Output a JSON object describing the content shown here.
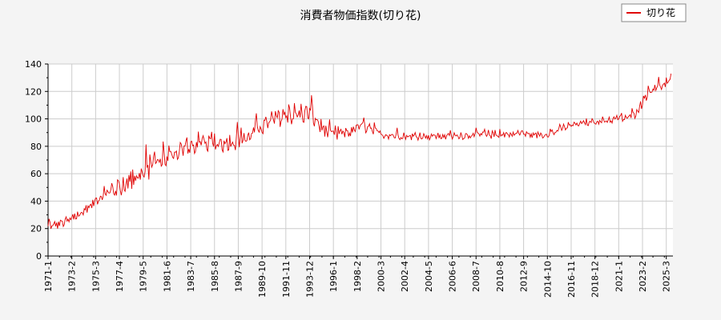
{
  "chart_data": {
    "type": "line",
    "title": "消費者物価指数(切り花)",
    "xlabel": "",
    "ylabel": "",
    "ylim": [
      0,
      140
    ],
    "yticks": [
      0,
      20,
      40,
      60,
      80,
      100,
      120,
      140
    ],
    "grid": true,
    "legend_position": "top-right",
    "x_tick_labels": [
      "1971-1",
      "1973-2",
      "1975-3",
      "1977-4",
      "1979-5",
      "1981-6",
      "1983-7",
      "1985-8",
      "1987-9",
      "1989-10",
      "1991-11",
      "1993-12",
      "1996-1",
      "1998-2",
      "2000-3",
      "2002-4",
      "2004-5",
      "2006-6",
      "2008-7",
      "2010-8",
      "2012-9",
      "2014-10",
      "2016-11",
      "2018-12",
      "2021-1",
      "2023-2",
      "2025-3"
    ],
    "colors": {
      "series": "#e00000",
      "grid": "#cccccc",
      "axis": "#000000",
      "background": "#f4f4f4",
      "plot_background": "#ffffff"
    },
    "series": [
      {
        "name": "切り花",
        "anchors_x": [
          "1971-01",
          "1972-01",
          "1973-01",
          "1974-01",
          "1975-01",
          "1975-09",
          "1976-06",
          "1977-06",
          "1978-06",
          "1979-06",
          "1980-06",
          "1981-06",
          "1982-06",
          "1983-06",
          "1984-06",
          "1985-06",
          "1986-06",
          "1987-06",
          "1988-06",
          "1989-06",
          "1990-06",
          "1991-06",
          "1992-06",
          "1993-06",
          "1994-01",
          "1994-06",
          "1995-06",
          "1996-06",
          "1997-06",
          "1998-06",
          "1999-06",
          "2000-06",
          "2002-06",
          "2004-06",
          "2006-06",
          "2008-06",
          "2010-06",
          "2012-06",
          "2013-06",
          "2014-06",
          "2015-06",
          "2016-06",
          "2017-06",
          "2018-06",
          "2019-06",
          "2020-06",
          "2021-06",
          "2022-01",
          "2022-06",
          "2023-01",
          "2023-06",
          "2024-01",
          "2024-06",
          "2025-01",
          "2025-06",
          "2025-08"
        ],
        "anchors_y": [
          21,
          23,
          26,
          31,
          38,
          43,
          46,
          50,
          54,
          60,
          66,
          71,
          76,
          78,
          80,
          81,
          82,
          83,
          85,
          92,
          97,
          101,
          102,
          103,
          104,
          98,
          89,
          88,
          90,
          94,
          91,
          88,
          87,
          87,
          87,
          88,
          88,
          89,
          88,
          88,
          90,
          94,
          96,
          97,
          98,
          99,
          100,
          101,
          104,
          110,
          117,
          122,
          123,
          124,
          125,
          127
        ]
      }
    ]
  }
}
